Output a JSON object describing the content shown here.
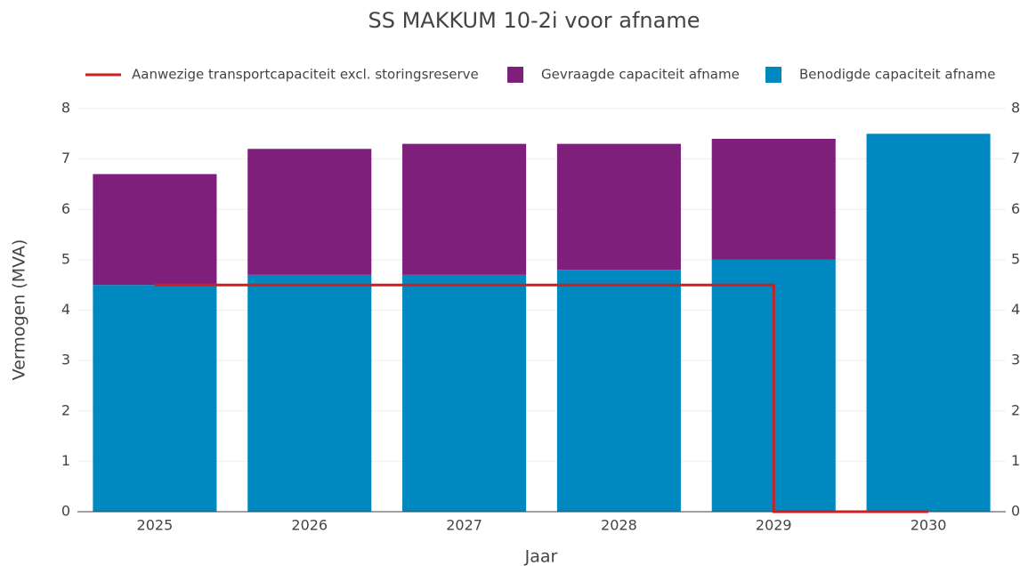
{
  "chart_data": {
    "type": "bar",
    "title": "SS MAKKUM 10-2i voor afname",
    "x_label": "Jaar",
    "y_label": "Vermogen (MVA)",
    "categories": [
      "2025",
      "2026",
      "2027",
      "2028",
      "2029",
      "2030"
    ],
    "series": [
      {
        "name": "Aanwezige transportcapaciteit excl. storingsreserve",
        "type": "line",
        "line_shape": "vh",
        "color": "#cc1f1f",
        "values": [
          4.5,
          4.5,
          4.5,
          4.5,
          4.5,
          0
        ]
      },
      {
        "name": "Gevraagde capaciteit afname",
        "type": "bar",
        "color": "#7f1f7c",
        "values": [
          2.2,
          2.5,
          2.6,
          2.5,
          2.4,
          0
        ]
      },
      {
        "name": "Benodigde capaciteit afname",
        "type": "bar",
        "color": "#0089c0",
        "values": [
          4.5,
          4.7,
          4.7,
          4.8,
          5.0,
          7.5
        ]
      }
    ],
    "ylim": [
      0,
      8
    ],
    "yticks": [
      0,
      1,
      2,
      3,
      4,
      5,
      6,
      7,
      8
    ],
    "grid": true,
    "mirror_y_axis": true
  }
}
